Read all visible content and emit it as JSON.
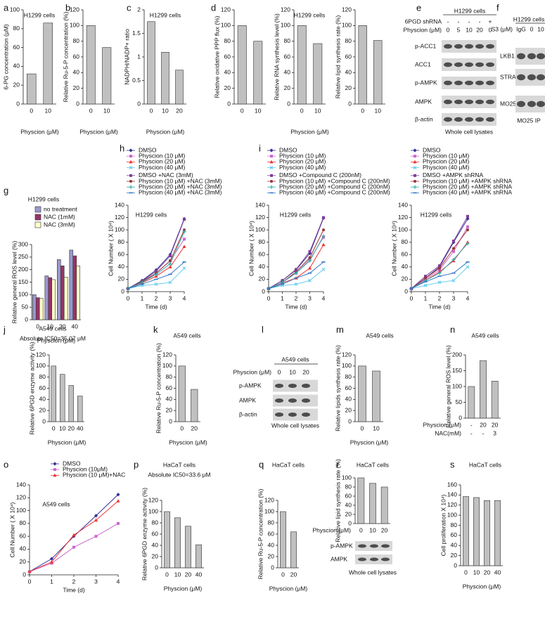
{
  "chart_data": [
    {
      "panel": "a",
      "type": "bar",
      "title": "H1299 cells",
      "ylabel": "6-PG concentration (μM)",
      "xlabel": "Physcion (μM)",
      "categories": [
        "0",
        "10"
      ],
      "values": [
        32,
        86
      ],
      "color": "#c0c0c0",
      "ylim": [
        0,
        100
      ],
      "yticks": [
        0,
        20,
        40,
        60,
        80,
        100
      ]
    },
    {
      "panel": "b",
      "type": "bar",
      "ylabel": "Relative Ru-5-P concentration (%)",
      "xlabel": "Physcion (μM)",
      "categories": [
        "0",
        "10"
      ],
      "values": [
        100,
        72
      ],
      "color": "#c0c0c0",
      "ylim": [
        0,
        120
      ],
      "yticks": [
        0,
        20,
        40,
        60,
        80,
        100,
        120
      ]
    },
    {
      "panel": "c",
      "type": "bar",
      "title": "H1299 cells",
      "ylabel": "NADPH/NADP+ ratio",
      "xlabel": "Physcion (μM)",
      "categories": [
        "0",
        "10",
        "20"
      ],
      "values": [
        1.75,
        1.1,
        0.72
      ],
      "color": "#c0c0c0",
      "ylim": [
        0,
        2
      ],
      "yticks": [
        0,
        0.5,
        1,
        1.5,
        2
      ]
    },
    {
      "panel": "d",
      "type": "bar",
      "ylabel": "Relative oxidative PPP flux (%)",
      "categories": [
        "0",
        "10"
      ],
      "values": [
        100,
        80
      ],
      "color": "#c0c0c0",
      "ylim": [
        0,
        120
      ],
      "yticks": [
        0,
        20,
        40,
        60,
        80,
        100,
        120
      ]
    },
    {
      "type": "bar",
      "title": "H1299 cells",
      "ylabel": "Relative RNA synthesis level (%)",
      "xlabel": "Physcion (μM)",
      "categories": [
        "0",
        "10"
      ],
      "values": [
        100,
        77
      ],
      "color": "#c0c0c0",
      "ylim": [
        0,
        120
      ],
      "yticks": [
        0,
        20,
        40,
        60,
        80,
        100,
        120
      ]
    },
    {
      "type": "bar",
      "ylabel": "Relative lipid synthesis rate (%)",
      "categories": [
        "0",
        "10"
      ],
      "values": [
        100,
        81
      ],
      "color": "#c0c0c0",
      "ylim": [
        0,
        120
      ],
      "yticks": [
        0,
        20,
        40,
        60,
        80,
        100,
        120
      ]
    },
    {
      "panel": "g",
      "type": "bar",
      "title": "H1299 cells",
      "ylabel": "Relative general ROS level (%)",
      "xlabel": "Physcion (μM)",
      "categories": [
        "0",
        "10",
        "20",
        "40"
      ],
      "legend": "top",
      "series": [
        {
          "name": "no treatment",
          "color": "#9999cc",
          "values": [
            100,
            175,
            240,
            278
          ]
        },
        {
          "name": "NAC (1mM)",
          "color": "#993366",
          "values": [
            88,
            168,
            215,
            255
          ]
        },
        {
          "name": "NAC (3mM)",
          "color": "#ffffcc",
          "values": [
            85,
            160,
            170,
            215
          ]
        }
      ],
      "ylim": [
        0,
        300
      ],
      "yticks": [
        0,
        50,
        100,
        150,
        200,
        250,
        300
      ]
    },
    {
      "panel": "h",
      "type": "line",
      "title": "H1299 cells",
      "ylabel": "Cell Number ( X 10⁴)",
      "xlabel": "Time (d)",
      "legend": "top",
      "x": [
        0,
        1,
        2,
        3,
        4
      ],
      "xlim": [
        0,
        4
      ],
      "xticks": [
        0,
        1,
        2,
        3,
        4
      ],
      "ylim": [
        0,
        140
      ],
      "yticks": [
        0,
        20,
        40,
        60,
        80,
        100,
        120,
        140
      ],
      "series": [
        {
          "name": "DMSO",
          "color": "#333399",
          "marker": "diamond",
          "values": [
            5,
            18,
            35,
            60,
            118
          ]
        },
        {
          "name": "Physcion (10 μM)",
          "color": "#cc66cc",
          "marker": "square",
          "values": [
            5,
            15,
            30,
            50,
            85
          ]
        },
        {
          "name": "Physcion (20 μM)",
          "color": "#ee3333",
          "marker": "triangle",
          "values": [
            5,
            14,
            25,
            40,
            73
          ]
        },
        {
          "name": "Physcion (40 μM)",
          "color": "#66ccee",
          "marker": "x",
          "values": [
            5,
            10,
            12,
            15,
            38
          ]
        },
        {
          "name": "DMSO +NAC (3mM)",
          "color": "#7f3f98",
          "marker": "square",
          "values": [
            5,
            17,
            33,
            58,
            117
          ]
        },
        {
          "name": "Physcion (10 μM) +NAC (3mM)",
          "color": "#993333",
          "marker": "circle",
          "values": [
            5,
            16,
            30,
            50,
            100
          ]
        },
        {
          "name": "Physcion (20 μM) +NAC (3mM)",
          "color": "#33aaaa",
          "marker": "plus",
          "values": [
            5,
            15,
            28,
            45,
            97
          ]
        },
        {
          "name": "Physcion (40 μM) +NAC (3mM)",
          "color": "#3377cc",
          "marker": "dash",
          "values": [
            5,
            12,
            20,
            28,
            48
          ]
        }
      ]
    },
    {
      "panel": "i",
      "type": "line",
      "title": "H1299 cells",
      "ylabel": "Cell Number ( X 10⁴)",
      "xlabel": "Time (d)",
      "legend": "top",
      "x": [
        0,
        1,
        2,
        3,
        4
      ],
      "xlim": [
        0,
        4
      ],
      "xticks": [
        0,
        1,
        2,
        3,
        4
      ],
      "ylim": [
        0,
        140
      ],
      "yticks": [
        0,
        20,
        40,
        60,
        80,
        100,
        120,
        140
      ],
      "series": [
        {
          "name": "DMSO",
          "color": "#333399",
          "marker": "diamond",
          "values": [
            5,
            18,
            35,
            62,
            119
          ]
        },
        {
          "name": "Physcion (10 μM)",
          "color": "#cc66cc",
          "marker": "square",
          "values": [
            5,
            15,
            30,
            52,
            88
          ]
        },
        {
          "name": "Physcion (20 μM)",
          "color": "#ee3333",
          "marker": "triangle",
          "values": [
            5,
            14,
            22,
            38,
            76
          ]
        },
        {
          "name": "Physcion (40 μM)",
          "color": "#66ccee",
          "marker": "x",
          "values": [
            5,
            10,
            12,
            18,
            36
          ]
        },
        {
          "name": "DMSO +Compound C (200nM)",
          "color": "#7f3f98",
          "marker": "square",
          "values": [
            5,
            18,
            36,
            65,
            120
          ]
        },
        {
          "name": "Physcion (10 μM) +Compound C (200nM)",
          "color": "#993333",
          "marker": "circle",
          "values": [
            5,
            15,
            32,
            55,
            100
          ]
        },
        {
          "name": "Physcion (20 μM) +Compound C (200nM)",
          "color": "#33aaaa",
          "marker": "plus",
          "values": [
            5,
            15,
            30,
            50,
            90
          ]
        },
        {
          "name": "Physcion (40 μM) +Compound C (200nM)",
          "color": "#3377cc",
          "marker": "dash",
          "values": [
            5,
            12,
            22,
            30,
            48
          ]
        }
      ]
    },
    {
      "type": "line",
      "title": "H1299 cells",
      "ylabel": "Cell Number ( X 10⁴)",
      "xlabel": "Time (d)",
      "legend": "top",
      "x": [
        0,
        1,
        2,
        3,
        4
      ],
      "xlim": [
        0,
        4
      ],
      "xticks": [
        0,
        1,
        2,
        3,
        4
      ],
      "ylim": [
        0,
        140
      ],
      "yticks": [
        0,
        20,
        40,
        60,
        80,
        100,
        120,
        140
      ],
      "series": [
        {
          "name": "DMSO",
          "color": "#333399",
          "marker": "diamond",
          "values": [
            5,
            22,
            40,
            80,
            118
          ]
        },
        {
          "name": "Physcion (10 μM)",
          "color": "#cc66cc",
          "marker": "square",
          "values": [
            5,
            20,
            35,
            65,
            105
          ]
        },
        {
          "name": "Physcion (20 μM)",
          "color": "#ee3333",
          "marker": "triangle",
          "values": [
            5,
            18,
            32,
            50,
            80
          ]
        },
        {
          "name": "Physcion (40 μM)",
          "color": "#66ccee",
          "marker": "x",
          "values": [
            5,
            10,
            15,
            18,
            40
          ]
        },
        {
          "name": "DMSO +AMPK shRNA",
          "color": "#7f3f98",
          "marker": "square",
          "values": [
            5,
            25,
            42,
            82,
            122
          ]
        },
        {
          "name": "Physcion (10 μM) +AMPK shRNA",
          "color": "#993333",
          "marker": "circle",
          "values": [
            5,
            22,
            38,
            70,
            100
          ]
        },
        {
          "name": "Physcion (20 μM) +AMPK shRNA",
          "color": "#33aaaa",
          "marker": "plus",
          "values": [
            5,
            18,
            30,
            52,
            78
          ]
        },
        {
          "name": "Physcion (40 μM) +AMPK shRNA",
          "color": "#3377cc",
          "marker": "dash",
          "values": [
            5,
            16,
            25,
            30,
            48
          ]
        }
      ]
    },
    {
      "panel": "j",
      "type": "bar",
      "title": "A549 cells",
      "subtitle": "Absolute IC50=35.07 μM",
      "ylabel": "Relative 6PGD enzyme activity (%)",
      "xlabel": "Physcion (μM)",
      "categories": [
        "0",
        "10",
        "20",
        "40"
      ],
      "values": [
        100,
        85,
        65,
        46
      ],
      "color": "#c0c0c0",
      "ylim": [
        0,
        120
      ],
      "yticks": [
        0,
        20,
        40,
        60,
        80,
        100,
        120
      ]
    },
    {
      "panel": "k",
      "type": "bar",
      "title": "A549 cells",
      "ylabel": "Relative Ru-5-P concentration (%)",
      "xlabel": "Physcion (μM)",
      "categories": [
        "0",
        "20"
      ],
      "values": [
        100,
        58
      ],
      "color": "#c0c0c0",
      "ylim": [
        0,
        120
      ],
      "yticks": [
        0,
        20,
        40,
        60,
        80,
        100,
        120
      ]
    },
    {
      "panel": "m",
      "type": "bar",
      "title": "A549 cells",
      "ylabel": "Relative lipids synthesis rate (%)",
      "xlabel": "Physcion (μM)",
      "categories": [
        "0",
        "10"
      ],
      "values": [
        100,
        91
      ],
      "color": "#c0c0c0",
      "ylim": [
        0,
        120
      ],
      "yticks": [
        0,
        20,
        40,
        60,
        80,
        100,
        120
      ]
    },
    {
      "panel": "n",
      "type": "bar",
      "title": "A549 cells",
      "ylabel": "Relative general ROS level (%)",
      "row_labels": [
        "Physcion (μM)",
        "NAC(mM)"
      ],
      "categories": [
        "-",
        "20",
        "20"
      ],
      "categories_row2": [
        "-",
        "-",
        "3"
      ],
      "values": [
        100,
        182,
        117
      ],
      "color": "#c0c0c0",
      "ylim": [
        0,
        200
      ],
      "yticks": [
        0,
        50,
        100,
        150,
        200
      ]
    },
    {
      "panel": "o",
      "type": "line",
      "title": "A549 cells",
      "ylabel": "Cell Number ( X 10⁴)",
      "xlabel": "Time (d)",
      "legend": "top",
      "x": [
        0,
        1,
        2,
        3,
        4
      ],
      "xlim": [
        0,
        4
      ],
      "xticks": [
        0,
        1,
        2,
        3,
        4
      ],
      "ylim": [
        0,
        140
      ],
      "yticks": [
        0,
        20,
        40,
        60,
        80,
        100,
        120,
        140
      ],
      "series": [
        {
          "name": "DMSO",
          "color": "#333399",
          "marker": "diamond",
          "values": [
            5,
            25,
            60,
            92,
            125
          ]
        },
        {
          "name": "Physcion (10μM)",
          "color": "#cc66cc",
          "marker": "square",
          "values": [
            5,
            18,
            43,
            60,
            80
          ]
        },
        {
          "name": "Physcion (10 μM)+NAC",
          "color": "#ee3333",
          "marker": "triangle",
          "values": [
            5,
            20,
            62,
            85,
            115
          ]
        }
      ]
    },
    {
      "panel": "p",
      "type": "bar",
      "title": "HaCaT cells",
      "subtitle": "Absolute IC50=33.6 μM",
      "ylabel": "Relative 6PGD enzyme activity (%)",
      "xlabel": "Physcion (μM)",
      "categories": [
        "0",
        "10",
        "20",
        "40"
      ],
      "values": [
        100,
        89,
        74,
        41
      ],
      "color": "#c0c0c0",
      "ylim": [
        0,
        120
      ],
      "yticks": [
        0,
        20,
        40,
        60,
        80,
        100,
        120
      ]
    },
    {
      "panel": "q",
      "type": "bar",
      "title": "HaCaT cells",
      "ylabel": "Relative Ru-5-P concentration (%)",
      "xlabel": "Physcion (μM)",
      "categories": [
        "0",
        "20"
      ],
      "values": [
        100,
        64
      ],
      "color": "#c0c0c0",
      "ylim": [
        0,
        120
      ],
      "yticks": [
        0,
        20,
        40,
        60,
        80,
        100,
        120
      ]
    },
    {
      "panel": "r",
      "type": "bar",
      "title": "HaCaT cells",
      "ylabel": "Relative lipid synthesis rate (%)",
      "row_labels": [
        "Physcion (μM)"
      ],
      "categories": [
        "0",
        "10",
        "20"
      ],
      "values": [
        100,
        88,
        80
      ],
      "color": "#c0c0c0",
      "ylim": [
        0,
        100
      ],
      "yticks": [
        0,
        20,
        40,
        60,
        80,
        100
      ]
    },
    {
      "panel": "s",
      "type": "bar",
      "title": "HaCaT cells",
      "ylabel": "Cell proliferation X 10⁴)",
      "xlabel": "Physcion (μM)",
      "categories": [
        "0",
        "10",
        "20",
        "40"
      ],
      "values": [
        137,
        135,
        129,
        129
      ],
      "color": "#c0c0c0",
      "ylim": [
        0,
        160
      ],
      "yticks": [
        0,
        20,
        40,
        60,
        80,
        100,
        120,
        140,
        160
      ]
    }
  ],
  "blots": [
    {
      "panel": "e",
      "title": "H1299 cells",
      "conditions": [
        {
          "label": "6PGD shRNA",
          "lanes": [
            "-",
            "-",
            "-",
            "-",
            "+"
          ]
        },
        {
          "label": "Physcion (μM)",
          "lanes": [
            "0",
            "5",
            "10",
            "20",
            "0"
          ]
        }
      ],
      "bands": [
        "p-ACC1",
        "ACC1",
        "p-AMPK",
        "AMPK",
        "β-actin"
      ],
      "footer": "Whole cell lysates"
    },
    {
      "panel": "f",
      "title": "H1299 cells",
      "conditions": [
        {
          "label": "S3 (μM)",
          "lanes": [
            "IgG",
            "0",
            "10"
          ]
        }
      ],
      "bands": [
        "LKB1",
        "STRAD",
        "MO25"
      ],
      "footer": "MO25 IP"
    },
    {
      "panel": "l",
      "title": "A549 cells",
      "conditions": [
        {
          "label": "Physcion (μM)",
          "lanes": [
            "0",
            "10",
            "20"
          ]
        }
      ],
      "bands": [
        "p-AMPK",
        "AMPK",
        "β-actin"
      ],
      "footer": "Whole cell lysates"
    },
    {
      "bands": [
        "p-AMPK",
        "AMPK"
      ],
      "footer": "Whole cell lysates"
    }
  ]
}
